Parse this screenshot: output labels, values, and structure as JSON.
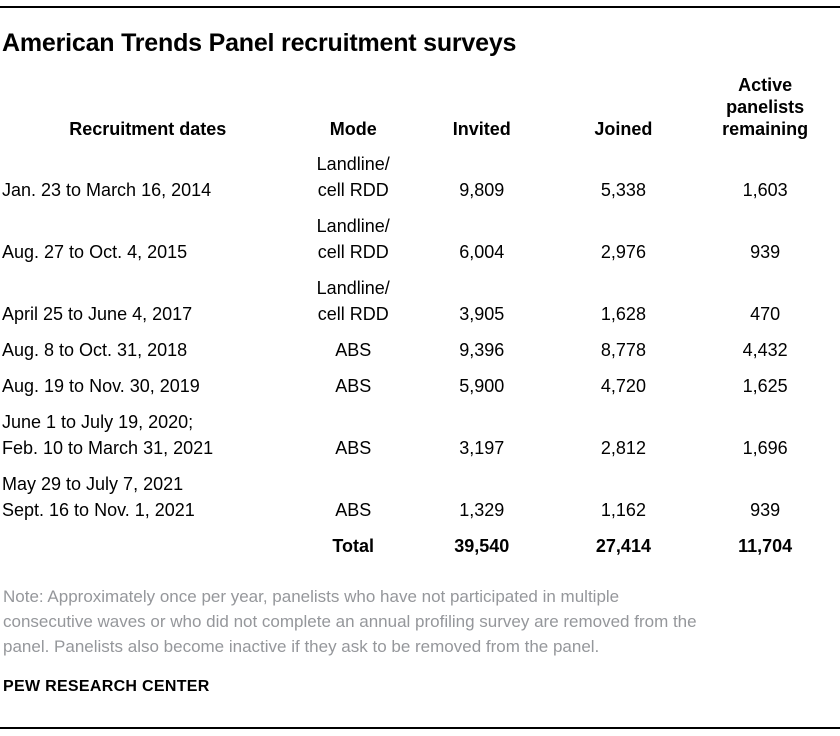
{
  "title": "American Trends Panel recruitment surveys",
  "table": {
    "headers": {
      "dates": "Recruitment dates",
      "mode": "Mode",
      "invited": "Invited",
      "joined": "Joined",
      "active": "Active\npanelists\nremaining"
    },
    "rows": [
      {
        "dates": "Jan. 23 to March 16, 2014",
        "mode": "Landline/\ncell RDD",
        "invited": "9,809",
        "joined": "5,338",
        "active": "1,603"
      },
      {
        "dates": "Aug. 27 to Oct. 4, 2015",
        "mode": "Landline/\ncell RDD",
        "invited": "6,004",
        "joined": "2,976",
        "active": "939"
      },
      {
        "dates": "April 25 to June 4, 2017",
        "mode": "Landline/\ncell RDD",
        "invited": "3,905",
        "joined": "1,628",
        "active": "470"
      },
      {
        "dates": "Aug. 8 to Oct. 31, 2018",
        "mode": "ABS",
        "invited": "9,396",
        "joined": "8,778",
        "active": "4,432"
      },
      {
        "dates": "Aug. 19 to Nov. 30, 2019",
        "mode": "ABS",
        "invited": "5,900",
        "joined": "4,720",
        "active": "1,625"
      },
      {
        "dates": "June 1 to July 19, 2020;\nFeb. 10 to March 31, 2021",
        "mode": "ABS",
        "invited": "3,197",
        "joined": "2,812",
        "active": "1,696"
      },
      {
        "dates": "May 29 to July 7, 2021\nSept. 16 to Nov. 1, 2021",
        "mode": "ABS",
        "invited": "1,329",
        "joined": "1,162",
        "active": "939"
      }
    ],
    "total": {
      "label": "Total",
      "invited": "39,540",
      "joined": "27,414",
      "active": "11,704"
    }
  },
  "note": "Note: Approximately once per year, panelists who have not participated in multiple\nconsecutive waves or who did not complete an annual profiling survey are removed from the\npanel. Panelists also become inactive if they ask to be removed from the panel.",
  "source": "PEW RESEARCH CENTER",
  "colors": {
    "text": "#000000",
    "note_gray": "#95979b",
    "rule": "#000000",
    "background": "#ffffff"
  },
  "chart_data": {
    "type": "table",
    "title": "American Trends Panel recruitment surveys",
    "columns": [
      "Recruitment dates",
      "Mode",
      "Invited",
      "Joined",
      "Active panelists remaining"
    ],
    "rows": [
      {
        "recruitment_dates": "Jan. 23 to March 16, 2014",
        "mode": "Landline/cell RDD",
        "invited": 9809,
        "joined": 5338,
        "active_panelists_remaining": 1603
      },
      {
        "recruitment_dates": "Aug. 27 to Oct. 4, 2015",
        "mode": "Landline/cell RDD",
        "invited": 6004,
        "joined": 2976,
        "active_panelists_remaining": 939
      },
      {
        "recruitment_dates": "April 25 to June 4, 2017",
        "mode": "Landline/cell RDD",
        "invited": 3905,
        "joined": 1628,
        "active_panelists_remaining": 470
      },
      {
        "recruitment_dates": "Aug. 8 to Oct. 31, 2018",
        "mode": "ABS",
        "invited": 9396,
        "joined": 8778,
        "active_panelists_remaining": 4432
      },
      {
        "recruitment_dates": "Aug. 19 to Nov. 30, 2019",
        "mode": "ABS",
        "invited": 5900,
        "joined": 4720,
        "active_panelists_remaining": 1625
      },
      {
        "recruitment_dates": "June 1 to July 19, 2020; Feb. 10 to March 31, 2021",
        "mode": "ABS",
        "invited": 3197,
        "joined": 2812,
        "active_panelists_remaining": 1696
      },
      {
        "recruitment_dates": "May 29 to July 7, 2021; Sept. 16 to Nov. 1, 2021",
        "mode": "ABS",
        "invited": 1329,
        "joined": 1162,
        "active_panelists_remaining": 939
      }
    ],
    "total": {
      "invited": 39540,
      "joined": 27414,
      "active_panelists_remaining": 11704
    },
    "note": "Approximately once per year, panelists who have not participated in multiple consecutive waves or who did not complete an annual profiling survey are removed from the panel. Panelists also become inactive if they ask to be removed from the panel.",
    "source": "PEW RESEARCH CENTER"
  }
}
